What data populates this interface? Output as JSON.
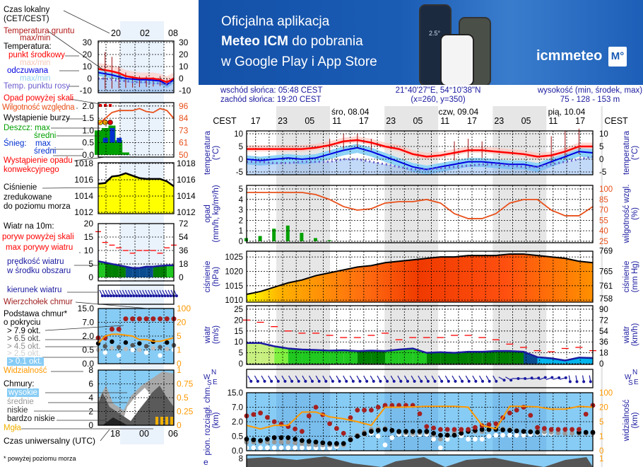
{
  "banner": {
    "line1": "Oficjalna aplikacja",
    "line2_bold": "Meteo ICM",
    "line2_rest": " do pobrania",
    "line3": "w Google Play i App Store",
    "logo_text": "icmmeteo",
    "logo_badge": "M°",
    "phone_temp": "2.5°"
  },
  "info": {
    "sunrise": "wschód słońca: 05:48 CEST",
    "sunset": "zachód słońca: 19:20 CEST",
    "coords": "21°40'27\"E, 54°10'38\"N",
    "grid": "(x=260,  y=350)",
    "elevation_title": "wysokość (min, środek, max)",
    "elevation_values": "75 - 128 - 153 m"
  },
  "timeline": {
    "tz_left": "CEST",
    "tz_right": "CEST",
    "days": [
      "śro, 08.04",
      "czw, 09.04",
      "pią, 10.04"
    ],
    "hours": [
      "17",
      "23",
      "05",
      "11",
      "17",
      "23",
      "05",
      "11",
      "17",
      "23",
      "05",
      "11",
      "17"
    ]
  },
  "axes": {
    "temp_left": [
      "temperatura",
      "(°C)"
    ],
    "temp_right": [
      "(°C)",
      "temperatura"
    ],
    "precip_left": [
      "opad",
      "(mm/h, kg/m²/h)"
    ],
    "precip_right": [
      "(%)",
      "wilgotność wzgl."
    ],
    "pressure_left": [
      "ciśnienie",
      "(hPa)"
    ],
    "pressure_right": [
      "(mm Hg)",
      "ciśnienie"
    ],
    "wind_left": [
      "wiatr",
      "(m/s)"
    ],
    "wind_right": [
      "(km/h)",
      "wiatr"
    ],
    "compass": {
      "n": "N",
      "w": "W",
      "s": "S",
      "e": "E"
    },
    "cloud_left": [
      "pion. rozciągł. chm.",
      "(km)"
    ],
    "cloud_right": [
      "(km)",
      "widzialność"
    ],
    "cover_left": "e"
  },
  "ticks": {
    "main": {
      "temp": [
        "10",
        "5",
        "0",
        "-5"
      ],
      "precip": [
        "5",
        "4",
        "3",
        "2",
        "1",
        "0"
      ],
      "humidity": [
        "100",
        "85",
        "70",
        "55",
        "40",
        "25"
      ],
      "pressure": [
        "1025",
        "1020",
        "1015",
        "1010"
      ],
      "pressure_mmhg": [
        "769",
        "765",
        "761",
        "758"
      ],
      "wind": [
        "25",
        "20",
        "15",
        "10",
        "5",
        "0"
      ],
      "wind_kmh": [
        "90",
        "72",
        "54",
        "36",
        "18",
        "0"
      ],
      "cloud": [
        "15.0",
        "7.0",
        "2.0",
        "0.5",
        "0.0"
      ],
      "visibility": [
        "100",
        "20",
        "5",
        "1",
        "0"
      ],
      "cover_left": "8",
      "cover_right": "1"
    },
    "mini": {
      "top_hours": [
        "20",
        "02",
        "08"
      ],
      "bottom_hours": [
        "18",
        "00",
        "06"
      ],
      "temp": [
        "30",
        "20",
        "10",
        "0",
        "-10"
      ],
      "precip": [
        "2.0",
        "1.5",
        "1.0",
        "0.5",
        "0.0"
      ],
      "humidity": [
        "96",
        "84",
        "73",
        "61",
        "50"
      ],
      "pressure": [
        "1018",
        "1016",
        "1014",
        "1012"
      ],
      "wind": [
        "20",
        "15",
        "10",
        "5",
        "0"
      ],
      "wind_kmh": [
        "72",
        "54",
        "36",
        "18",
        "0"
      ],
      "cloud": [
        "15.0",
        "7.0",
        "2.0",
        "0.5",
        "0.0"
      ],
      "visibility": [
        "100",
        "20",
        "5",
        "1",
        "0"
      ],
      "cover": [
        "8",
        "6",
        "4",
        "2",
        "0"
      ],
      "cover_frac": [
        "1",
        "0.75",
        "0.5",
        "0.25",
        "0"
      ]
    }
  },
  "legend": {
    "local_time": "Czas lokalny",
    "local_time_tz": "(CET/CEST)",
    "ground_temp": "Temperatura gruntu",
    "ground_temp_mm": "max/min",
    "temperature": "Temperatura:",
    "mid_point": "punkt środkowy",
    "mid_mm": "max/min",
    "felt": "odczuwana",
    "felt_mm": "max/min",
    "dew_point": "Temp. punktu rosy",
    "precip_over": "Opad powyżej skali",
    "humidity": "Wilgotność względna",
    "storm": "Wystąpienie burzy",
    "rain_max": "Deszcz: max",
    "rain_avg": "średni",
    "snow": "Śnieg:",
    "snow_max": "max",
    "snow_avg": "średni",
    "convective_1": "Wystąpienie opadu",
    "convective_2": "konwekcyjnego",
    "pressure_1": "Ciśnienie",
    "pressure_2": "zredukowane",
    "pressure_3": "do poziomu morza",
    "wind_title": "Wiatr na 10m:",
    "gust_over": "poryw powyżej skali",
    "gust_max": "max porywy wiatru",
    "wind_speed_1": "prędkość wiatru",
    "wind_speed_2": "w środku obszaru",
    "wind_dir": "kierunek wiatru",
    "cloud_top": "Wierzchołek chmur",
    "cloud_base_1": "Podstawa chmur*",
    "cloud_base_2": "o pokryciu",
    "okt_79": "> 7.9 okt.",
    "okt_65": "> 6.5 okt.",
    "okt_45": "> 4.5 okt.",
    "okt_25": "> 2.5 okt.",
    "okt_01": "> 0.1 okt.",
    "visibility": "Widzialność",
    "clouds": "Chmury:",
    "high": "wysokie",
    "mid": "średnie",
    "low": "niskie",
    "very_low": "bardzo niskie",
    "fog": "Mgła",
    "utc": "Czas uniwersalny (UTC)",
    "footnote": "* powyżej poziomu morza"
  },
  "colors": {
    "temp": "#ff0000",
    "felt": "#0000e0",
    "dew": "#6a5acd",
    "ground": "#a01010",
    "humidity": "#e8501a",
    "rain": "#00a000",
    "snow": "#0030d0",
    "gust": "#ff0000",
    "wind": "#0a0a90",
    "visibility": "#ff9900",
    "cloud_top": "#a02020",
    "sky": "#87ccf5",
    "night": "#e6e6e6"
  },
  "series": {
    "main": {
      "temp": [
        4,
        4,
        4,
        4,
        4,
        4.5,
        5.5,
        7,
        7.5,
        6.5,
        5,
        4,
        2,
        1,
        1.5,
        2.5,
        3.5,
        3.5,
        3,
        2.5,
        2,
        1,
        1.5,
        3,
        5,
        5
      ],
      "felt": [
        0,
        -0.5,
        0,
        0.5,
        0,
        0.5,
        2,
        3.5,
        4.5,
        3,
        1,
        -1,
        -3,
        -4,
        -3,
        -2,
        -1,
        -1,
        -1.5,
        -2,
        -2,
        -3,
        -1,
        1,
        3,
        2.5
      ],
      "dew": [
        -1,
        -1,
        -1.5,
        -1.5,
        -1,
        -1,
        -1,
        0,
        0,
        -1,
        -2,
        -3,
        -4,
        -4,
        -3.5,
        -3,
        -2.5,
        -2,
        -2,
        -2.5,
        -3,
        -3,
        -2,
        -1,
        0,
        1
      ],
      "ground_max": [
        null,
        null,
        null,
        null,
        null,
        null,
        8,
        10,
        10,
        8,
        null,
        null,
        null,
        null,
        null,
        7,
        8,
        7,
        null,
        null,
        null,
        null,
        9,
        11,
        12,
        10
      ],
      "precip": [
        0.3,
        0.5,
        1.2,
        1.5,
        0.8,
        0.3,
        0.1,
        0,
        0,
        0,
        0,
        0,
        0,
        0,
        0,
        0,
        0,
        0,
        0,
        0,
        0,
        0,
        0,
        0,
        0,
        0
      ],
      "humidity": [
        95,
        95,
        95,
        95,
        95,
        92,
        85,
        75,
        70,
        72,
        80,
        82,
        82,
        85,
        80,
        65,
        58,
        58,
        65,
        80,
        85,
        85,
        70,
        62,
        62,
        75
      ],
      "pressure": [
        1012,
        1013,
        1014.5,
        1016,
        1017,
        1018.5,
        1019.5,
        1020.5,
        1021.5,
        1022,
        1023,
        1023.5,
        1024,
        1024.5,
        1025,
        1025,
        1025.5,
        1025.5,
        1025.5,
        1026,
        1026,
        1025.5,
        1025,
        1024.5,
        1023.5,
        1023
      ],
      "wind": [
        9.5,
        9.5,
        8,
        7,
        6.5,
        6.3,
        6,
        6.2,
        5.8,
        6,
        5.8,
        6.5,
        7,
        5,
        5.3,
        5,
        5.5,
        5.5,
        5.8,
        5.8,
        5.5,
        3,
        2.5,
        1.5,
        2.8,
        2.6
      ],
      "gust": [
        20,
        19,
        17,
        15,
        14,
        14,
        13,
        12,
        12,
        13,
        14,
        11,
        12,
        12,
        12,
        13,
        13,
        12,
        11,
        9,
        7.5,
        6,
        5.5,
        7,
        7.5,
        6
      ],
      "wind_dir": [
        330,
        330,
        330,
        330,
        330,
        330,
        330,
        330,
        330,
        330,
        330,
        330,
        330,
        330,
        330,
        330,
        330,
        330,
        330,
        300,
        270,
        260,
        250,
        255,
        350,
        350
      ],
      "visibility": [
        4,
        3,
        4,
        4,
        15,
        15,
        10,
        8,
        5,
        4,
        20,
        20,
        22,
        25,
        25,
        25,
        20,
        4,
        3,
        25,
        25,
        22,
        18,
        18,
        25,
        20
      ],
      "cloud_top": [
        4,
        5,
        2,
        1.5,
        1,
        7,
        1.8,
        0.8,
        6,
        6,
        8,
        8,
        8,
        1.5,
        1.2,
        1.2,
        1.2,
        1.6,
        1.8,
        5,
        7,
        1.4,
        1.2,
        1.2,
        1.2,
        8
      ],
      "base_black": [
        0.4,
        0.35,
        0.45,
        0.45,
        0.35,
        0.3,
        0.25,
        0.25,
        0.5,
        1,
        1.2,
        1,
        1,
        1,
        0.6,
        0.6,
        1,
        1.2,
        1.2,
        1.1,
        1,
        0.9,
        null,
        null,
        0.9,
        0.9
      ],
      "base_gray": [
        0.3,
        0.3,
        0.3,
        0.3,
        0.25,
        0.2,
        0.2,
        0.2,
        0.6,
        1.2,
        1.3,
        0.9,
        0.8,
        0.9,
        0.4,
        0.9,
        1,
        1,
        1.3,
        1.2,
        1,
        1,
        0.9,
        0.8,
        0.8,
        0.8
      ],
      "base_white": [
        0.1,
        0.1,
        0.1,
        0.1,
        0.1,
        0.1,
        0.1,
        0.2,
        0.6,
        0.8,
        0.2,
        0.7,
        0.7,
        0.7,
        0.1,
        0.7,
        0.4,
        0.4,
        0.6,
        0.6,
        0.6,
        0.8,
        0.8,
        null,
        null,
        null
      ]
    },
    "mini": {
      "temp": [
        8,
        7,
        6,
        4.5,
        2,
        1,
        0,
        0,
        0,
        -1,
        -3,
        0
      ],
      "felt": [
        5,
        4,
        3,
        1.5,
        0,
        -0.5,
        -1,
        -1,
        -1.5,
        -2,
        -5,
        -1
      ],
      "dew": [
        0,
        0,
        -1,
        -2,
        -2,
        -3,
        -3,
        -3,
        -4,
        -4,
        -5,
        -2
      ],
      "ground_max": [
        15,
        22,
        18,
        10,
        5,
        2,
        2,
        2,
        1,
        2,
        0,
        null
      ],
      "humidity": [
        80,
        86,
        92,
        94,
        94,
        94,
        96,
        93,
        92,
        96,
        94,
        86
      ],
      "rain": [
        1.0,
        1.1,
        1.2,
        0.6,
        0.1,
        0,
        0,
        0,
        0,
        0,
        0,
        0
      ],
      "snow": [
        0,
        0.2,
        0.6,
        0.2,
        0,
        0,
        0,
        0,
        0,
        0,
        0,
        0
      ],
      "pressure": [
        1015.5,
        1015.6,
        1016.4,
        1016.5,
        1016.8,
        1016.5,
        1016.2,
        1016.1,
        1016.1,
        1016.1,
        1015.8,
        1015.2
      ],
      "wind": [
        6,
        5.5,
        5,
        4.5,
        4,
        3.5,
        3.5,
        4,
        4,
        4.3,
        4.5,
        4.5
      ],
      "gust": [
        17,
        13,
        12,
        11,
        10,
        9,
        10,
        10,
        10,
        9,
        11,
        12
      ],
      "visibility": [
        3,
        5,
        7,
        7,
        6,
        5,
        4,
        4,
        3.5,
        3.5,
        4,
        4.5
      ],
      "cloud_top": [
        1.8,
        1.8,
        4.5,
        4.5,
        9,
        9,
        9,
        9,
        9,
        9,
        9,
        9
      ]
    }
  }
}
